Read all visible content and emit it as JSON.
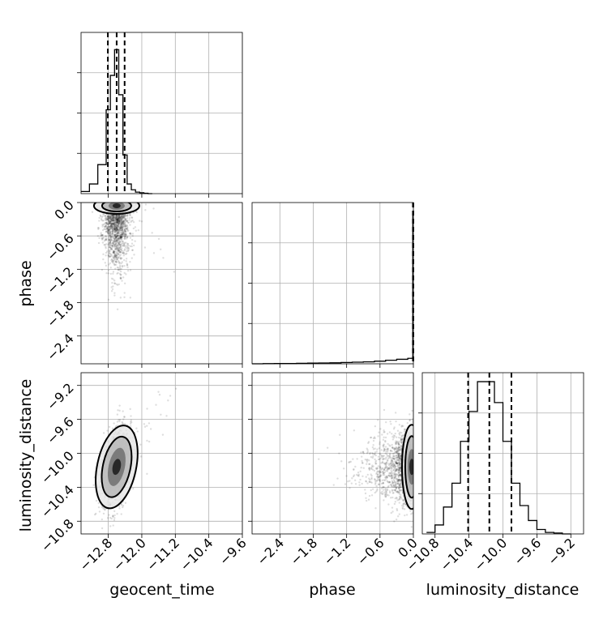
{
  "chart_data": {
    "type": "corner",
    "parameters": [
      "geocent_time",
      "phase",
      "luminosity_distance"
    ],
    "axes": {
      "geocent_time": {
        "range": [
          -13.45,
          -9.6
        ],
        "ticks": [
          -12.8,
          -12.0,
          -11.2,
          -10.4,
          -9.6
        ],
        "tick_labels": [
          "−12.8",
          "−12.0",
          "−11.2",
          "−10.4",
          "−9.6"
        ],
        "quantiles": [
          -12.81,
          -12.6,
          -12.41
        ]
      },
      "phase": {
        "range": [
          -2.9,
          0.0
        ],
        "ticks": [
          -2.4,
          -1.8,
          -1.2,
          -0.6,
          0.0
        ],
        "tick_labels": [
          "−2.4",
          "−1.8",
          "−1.2",
          "−0.6",
          "0.0"
        ],
        "quantiles": [
          -0.008,
          -0.003,
          -0.001
        ]
      },
      "luminosity_distance": {
        "range": [
          -10.95,
          -9.05
        ],
        "ticks": [
          -10.8,
          -10.4,
          -10.0,
          -9.6,
          -9.2
        ],
        "tick_labels": [
          "−10.8",
          "−10.4",
          "−10.0",
          "−9.6",
          "−9.2"
        ],
        "quantiles": [
          -10.41,
          -10.16,
          -9.9
        ]
      }
    },
    "histograms": {
      "geocent_time": {
        "edges": [
          -13.45,
          -13.25,
          -13.05,
          -12.85,
          -12.75,
          -12.65,
          -12.55,
          -12.45,
          -12.35,
          -12.25,
          -12.15,
          -12.05,
          -11.95,
          -11.85,
          -11.75
        ],
        "counts": [
          0.1,
          0.45,
          1.35,
          3.9,
          5.5,
          6.7,
          4.6,
          1.8,
          0.45,
          0.18,
          0.07,
          0.04,
          0.02,
          0.0
        ],
        "ymax": 7.5
      },
      "phase": {
        "edges": [
          -2.9,
          -2.7,
          -2.5,
          -2.3,
          -2.1,
          -1.9,
          -1.7,
          -1.5,
          -1.3,
          -1.1,
          -0.9,
          -0.7,
          -0.5,
          -0.3,
          -0.1,
          -0.01,
          0.0
        ],
        "counts": [
          0.0,
          0.005,
          0.01,
          0.01,
          0.015,
          0.02,
          0.025,
          0.03,
          0.04,
          0.05,
          0.06,
          0.08,
          0.11,
          0.14,
          0.17,
          4.6
        ],
        "ymax": 5.0
      },
      "luminosity_distance": {
        "edges": [
          -10.9,
          -10.8,
          -10.7,
          -10.6,
          -10.5,
          -10.4,
          -10.3,
          -10.2,
          -10.1,
          -10.0,
          -9.9,
          -9.8,
          -9.7,
          -9.6,
          -9.5,
          -9.4,
          -9.3,
          -9.2
        ],
        "counts": [
          0.05,
          0.3,
          0.9,
          1.7,
          3.1,
          4.1,
          5.1,
          5.1,
          4.4,
          3.1,
          1.7,
          0.95,
          0.45,
          0.15,
          0.05,
          0.03,
          0.0
        ],
        "ymax": 5.4
      }
    },
    "scatter_centers": {
      "geocent_time_phase": {
        "x": -12.6,
        "y": -0.3,
        "n": 1600
      },
      "geocent_time_luminosity_distance": {
        "x": -12.6,
        "y": -10.16,
        "n": 1800
      },
      "phase_luminosity_distance": {
        "x": -0.25,
        "y": -10.16,
        "n": 1800
      }
    }
  }
}
